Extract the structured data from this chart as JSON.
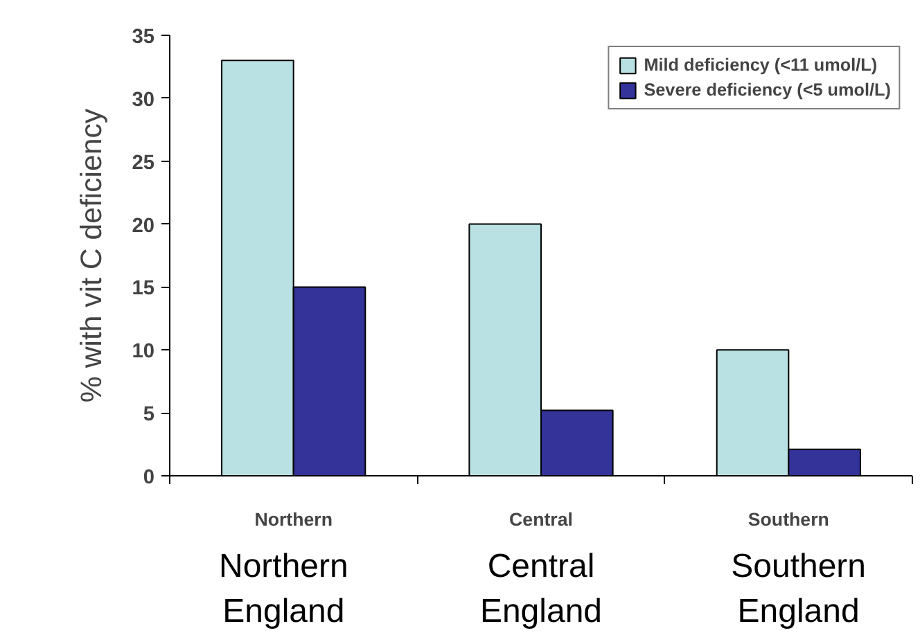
{
  "chart_data": {
    "type": "bar",
    "ylabel": "% with vit C deficiency",
    "categories": [
      "Northern",
      "Central",
      "Southern"
    ],
    "series": [
      {
        "name": "Mild deficiency (<11 umol/L)",
        "color": "#b9e0e3",
        "values": [
          33,
          20,
          10
        ]
      },
      {
        "name": "Severe deficiency (<5 umol/L)",
        "color": "#333399",
        "values": [
          15,
          5.2,
          2.1
        ]
      }
    ],
    "ylim": [
      0,
      35
    ],
    "yticks": [
      0,
      5,
      10,
      15,
      20,
      25,
      30,
      35
    ],
    "grid": false,
    "legend": "top right",
    "annotations": [
      "Northern\nEngland",
      "Central\nEngland",
      "Southern\nEngland"
    ]
  }
}
